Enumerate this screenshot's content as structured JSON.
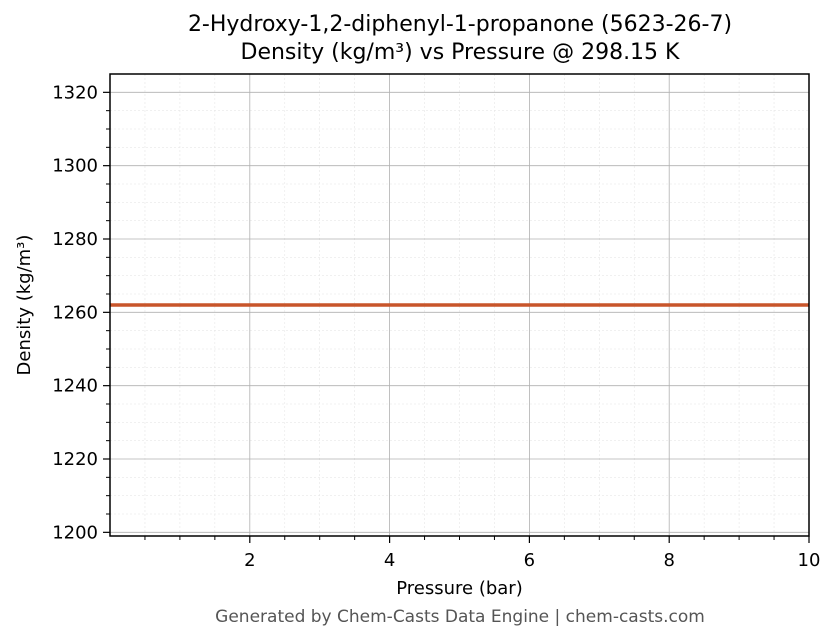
{
  "chart_data": {
    "type": "line",
    "title": "2-Hydroxy-1,2-diphenyl-1-propanone (5623-26-7)",
    "subtitle": "Density (kg/m³) vs Pressure @ 298.15 K",
    "xlabel": "Pressure (bar)",
    "ylabel": "Density (kg/m³)",
    "xlim": [
      0,
      10
    ],
    "ylim": [
      1199,
      1325
    ],
    "x_ticks": [
      2,
      4,
      6,
      8,
      10
    ],
    "y_ticks": [
      1200,
      1220,
      1240,
      1260,
      1280,
      1300,
      1320
    ],
    "grid": true,
    "series": [
      {
        "color": "#c8552a",
        "x": [
          0,
          2,
          4,
          6,
          8,
          10
        ],
        "y": [
          1262,
          1262,
          1262,
          1262,
          1262,
          1262
        ]
      }
    ]
  },
  "footer": "Generated by Chem-Casts Data Engine | chem-casts.com"
}
